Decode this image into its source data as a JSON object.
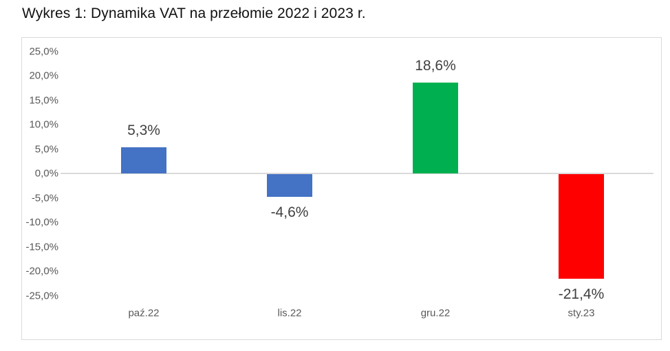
{
  "title": "Wykres 1: Dynamika VAT na przełomie 2022 i 2023 r.",
  "chart_data": {
    "type": "bar",
    "title": "Wykres 1: Dynamika VAT na przełomie 2022 i 2023 r.",
    "xlabel": "",
    "ylabel": "",
    "categories": [
      "paź.22",
      "lis.22",
      "gru.22",
      "sty.23"
    ],
    "values": [
      5.3,
      -4.6,
      18.6,
      -21.4
    ],
    "data_labels": [
      "5,3%",
      "-4,6%",
      "18,6%",
      "-21,4%"
    ],
    "bar_colors": [
      "#4472C4",
      "#4472C4",
      "#00B050",
      "#FF0000"
    ],
    "ylim": [
      -25,
      25
    ],
    "yticks": [
      25,
      20,
      15,
      10,
      5,
      0,
      -5,
      -10,
      -15,
      -20,
      -25
    ],
    "ytick_labels": [
      "25,0%",
      "20,0%",
      "15,0%",
      "10,0%",
      "5,0%",
      "0,0%",
      "-5,0%",
      "-10,0%",
      "-15,0%",
      "-20,0%",
      "-25,0%"
    ],
    "grid": false,
    "legend": null
  },
  "colors": {
    "frame": "#d9d9d9",
    "axis_text": "#595959",
    "label_text": "#404040"
  }
}
